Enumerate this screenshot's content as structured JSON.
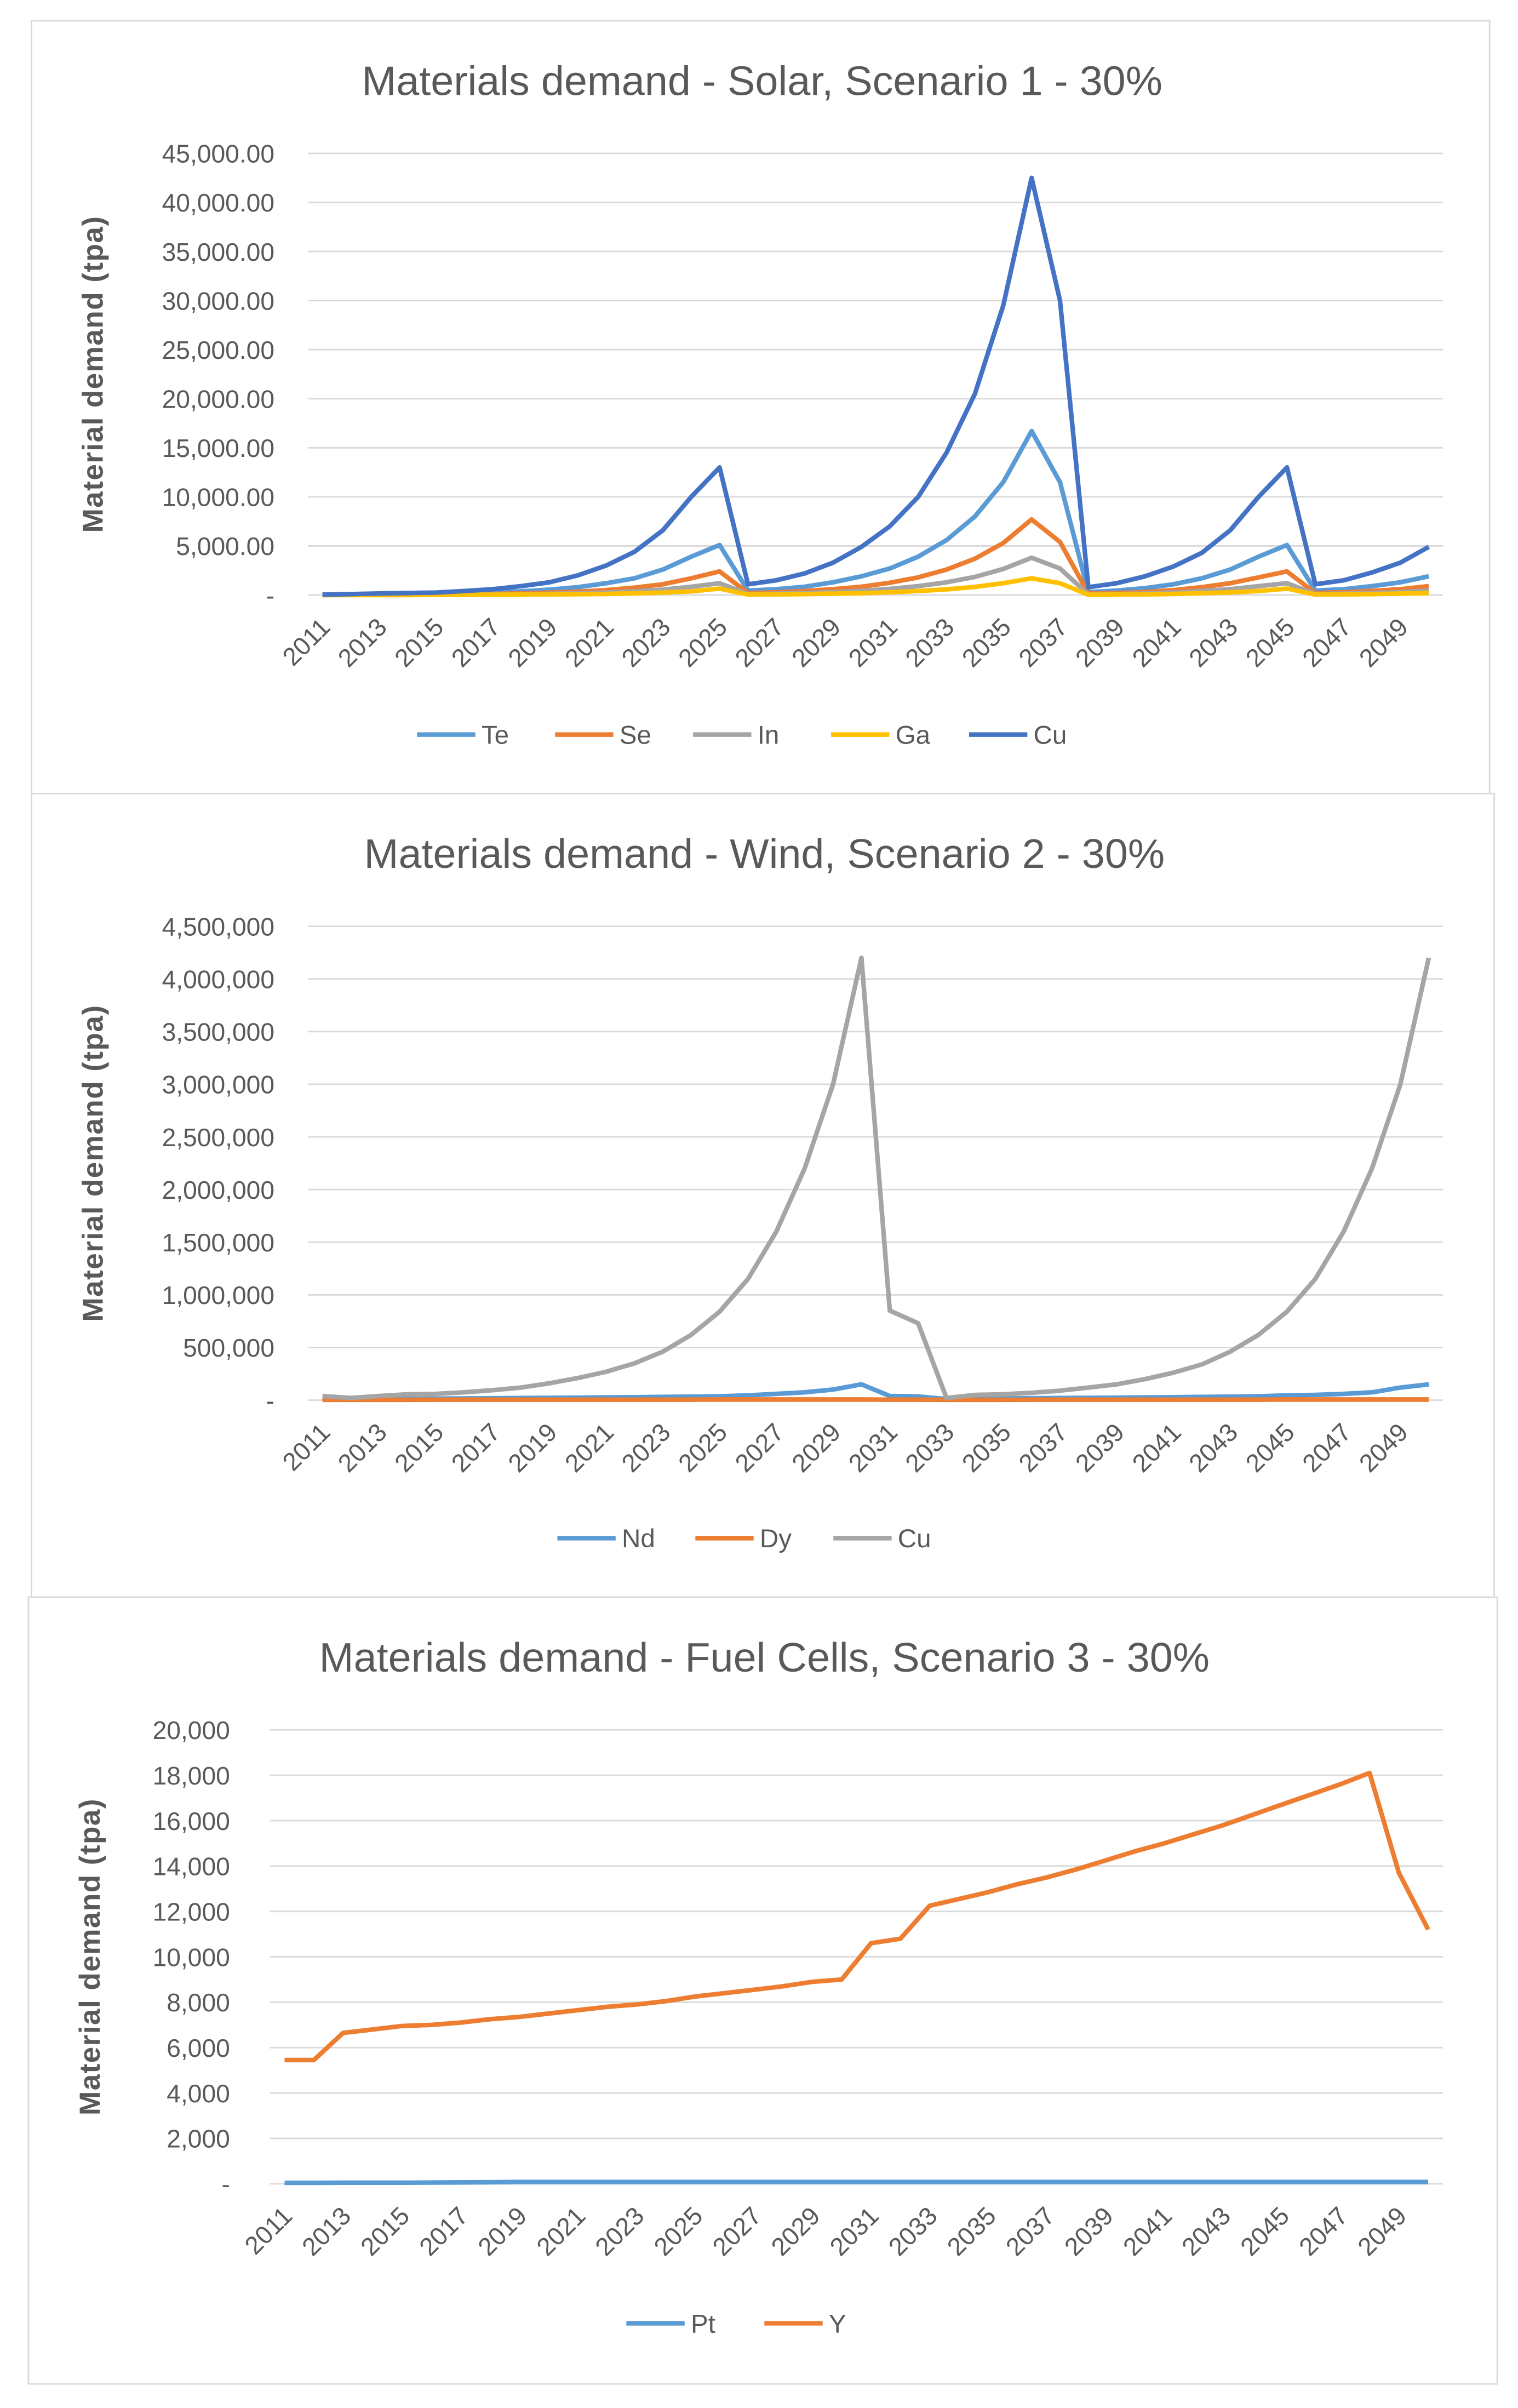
{
  "chart_data": [
    {
      "type": "line",
      "title": "Materials demand - Solar, Scenario 1 - 30%",
      "xlabel": "",
      "ylabel": "Material demand (tpa)",
      "ylim": [
        0,
        45000
      ],
      "yticks": [
        "-",
        "5,000.00",
        "10,000.00",
        "15,000.00",
        "20,000.00",
        "25,000.00",
        "30,000.00",
        "35,000.00",
        "40,000.00",
        "45,000.00"
      ],
      "grid": true,
      "legend": "bottom",
      "x": [
        2011,
        2012,
        2013,
        2014,
        2015,
        2016,
        2017,
        2018,
        2019,
        2020,
        2021,
        2022,
        2023,
        2024,
        2025,
        2026,
        2027,
        2028,
        2029,
        2030,
        2031,
        2032,
        2033,
        2034,
        2035,
        2036,
        2037,
        2038,
        2039,
        2040,
        2041,
        2042,
        2043,
        2044,
        2045,
        2046,
        2047,
        2048,
        2049,
        2050
      ],
      "xticklabels": [
        "2011",
        "2013",
        "2015",
        "2017",
        "2019",
        "2021",
        "2023",
        "2025",
        "2027",
        "2029",
        "2031",
        "2033",
        "2035",
        "2037",
        "2039",
        "2041",
        "2043",
        "2045",
        "2047",
        "2049"
      ],
      "series": [
        {
          "name": "Te",
          "color": "#5b9bd5",
          "values": [
            20,
            40,
            60,
            80,
            100,
            160,
            250,
            380,
            550,
            800,
            1200,
            1700,
            2600,
            3900,
            5100,
            450,
            600,
            850,
            1300,
            1900,
            2700,
            3900,
            5600,
            8000,
            11500,
            16700,
            11500,
            300,
            450,
            700,
            1100,
            1700,
            2600,
            3900,
            5100,
            450,
            600,
            900,
            1300,
            1900
          ]
        },
        {
          "name": "Se",
          "color": "#ed7d31",
          "values": [
            10,
            20,
            25,
            35,
            45,
            70,
            110,
            170,
            250,
            350,
            500,
            750,
            1100,
            1700,
            2400,
            200,
            280,
            400,
            600,
            850,
            1250,
            1800,
            2600,
            3700,
            5300,
            7700,
            5400,
            150,
            200,
            320,
            500,
            800,
            1200,
            1800,
            2400,
            200,
            280,
            420,
            600,
            900
          ]
        },
        {
          "name": "In",
          "color": "#a5a5a5",
          "values": [
            5,
            10,
            12,
            17,
            22,
            35,
            55,
            85,
            120,
            170,
            250,
            370,
            550,
            850,
            1200,
            100,
            140,
            200,
            300,
            420,
            620,
            900,
            1300,
            1850,
            2650,
            3800,
            2700,
            70,
            100,
            160,
            250,
            400,
            600,
            900,
            1200,
            100,
            140,
            210,
            300,
            450
          ]
        },
        {
          "name": "Ga",
          "color": "#ffc000",
          "values": [
            2,
            4,
            5,
            7,
            10,
            15,
            25,
            40,
            55,
            80,
            110,
            170,
            250,
            380,
            650,
            45,
            65,
            90,
            135,
            190,
            280,
            400,
            580,
            830,
            1200,
            1700,
            1200,
            30,
            45,
            70,
            110,
            180,
            270,
            400,
            650,
            45,
            65,
            95,
            135,
            200
          ]
        },
        {
          "name": "Cu",
          "color": "#4472c4",
          "values": [
            50,
            100,
            150,
            200,
            250,
            400,
            600,
            900,
            1300,
            2000,
            3000,
            4400,
            6600,
            10000,
            13000,
            1100,
            1500,
            2200,
            3300,
            4900,
            7000,
            10000,
            14500,
            20500,
            29500,
            42500,
            30000,
            800,
            1200,
            1900,
            2900,
            4300,
            6600,
            10000,
            13000,
            1100,
            1500,
            2300,
            3300,
            4900
          ]
        }
      ]
    },
    {
      "type": "line",
      "title": "Materials demand - Wind, Scenario 2 - 30%",
      "xlabel": "",
      "ylabel": "Material demand (tpa)",
      "ylim": [
        0,
        4500000
      ],
      "yticks": [
        "-",
        "500,000",
        "1,000,000",
        "1,500,000",
        "2,000,000",
        "2,500,000",
        "3,000,000",
        "3,500,000",
        "4,000,000",
        "4,500,000"
      ],
      "grid": true,
      "legend": "bottom",
      "x": [
        2011,
        2012,
        2013,
        2014,
        2015,
        2016,
        2017,
        2018,
        2019,
        2020,
        2021,
        2022,
        2023,
        2024,
        2025,
        2026,
        2027,
        2028,
        2029,
        2030,
        2031,
        2032,
        2033,
        2034,
        2035,
        2036,
        2037,
        2038,
        2039,
        2040,
        2041,
        2042,
        2043,
        2044,
        2045,
        2046,
        2047,
        2048,
        2049,
        2050
      ],
      "xticklabels": [
        "2011",
        "2013",
        "2015",
        "2017",
        "2019",
        "2021",
        "2023",
        "2025",
        "2027",
        "2029",
        "2031",
        "2033",
        "2035",
        "2037",
        "2039",
        "2041",
        "2043",
        "2045",
        "2047",
        "2049"
      ],
      "series": [
        {
          "name": "Nd",
          "color": "#5b9bd5",
          "values": [
            5000,
            8000,
            10000,
            12000,
            14000,
            16000,
            18000,
            20000,
            22000,
            24000,
            26000,
            28000,
            30000,
            33000,
            37000,
            45000,
            60000,
            75000,
            100000,
            150000,
            40000,
            35000,
            10000,
            14000,
            16000,
            18000,
            20000,
            22000,
            24000,
            26000,
            28000,
            30000,
            33000,
            37000,
            45000,
            50000,
            60000,
            75000,
            120000,
            150000
          ]
        },
        {
          "name": "Dy",
          "color": "#ed7d31",
          "values": [
            3000,
            3000,
            3500,
            3500,
            4000,
            4000,
            4000,
            4500,
            4500,
            4500,
            5000,
            5000,
            5000,
            5000,
            5500,
            5500,
            5500,
            6000,
            6000,
            6500,
            4000,
            4000,
            3000,
            3500,
            3500,
            4000,
            4000,
            4000,
            4500,
            4500,
            4500,
            5000,
            5000,
            5000,
            5500,
            5500,
            5500,
            6000,
            6000,
            6500
          ]
        },
        {
          "name": "Cu",
          "color": "#a5a5a5",
          "values": [
            40000,
            20000,
            40000,
            55000,
            60000,
            75000,
            95000,
            120000,
            160000,
            210000,
            270000,
            350000,
            460000,
            620000,
            840000,
            1150000,
            1600000,
            2200000,
            3000000,
            4200000,
            850000,
            730000,
            20000,
            50000,
            55000,
            70000,
            90000,
            120000,
            150000,
            200000,
            260000,
            340000,
            460000,
            620000,
            840000,
            1150000,
            1600000,
            2200000,
            3000000,
            4200000
          ]
        }
      ]
    },
    {
      "type": "line",
      "title": "Materials demand - Fuel Cells, Scenario 3 - 30%",
      "xlabel": "",
      "ylabel": "Material demand (tpa)",
      "ylim": [
        0,
        20000
      ],
      "yticks": [
        "-",
        "2,000",
        "4,000",
        "6,000",
        "8,000",
        "10,000",
        "12,000",
        "14,000",
        "16,000",
        "18,000",
        "20,000"
      ],
      "grid": true,
      "legend": "bottom",
      "x": [
        2011,
        2012,
        2013,
        2014,
        2015,
        2016,
        2017,
        2018,
        2019,
        2020,
        2021,
        2022,
        2023,
        2024,
        2025,
        2026,
        2027,
        2028,
        2029,
        2030,
        2031,
        2032,
        2033,
        2034,
        2035,
        2036,
        2037,
        2038,
        2039,
        2040,
        2041,
        2042,
        2043,
        2044,
        2045,
        2046,
        2047,
        2048,
        2049,
        2050
      ],
      "xticklabels": [
        "2011",
        "2013",
        "2015",
        "2017",
        "2019",
        "2021",
        "2023",
        "2025",
        "2027",
        "2029",
        "2031",
        "2033",
        "2035",
        "2037",
        "2039",
        "2041",
        "2043",
        "2045",
        "2047",
        "2049"
      ],
      "series": [
        {
          "name": "Pt",
          "color": "#5b9bd5",
          "values": [
            40,
            40,
            45,
            45,
            50,
            55,
            60,
            70,
            80,
            80,
            80,
            80,
            80,
            80,
            80,
            80,
            80,
            80,
            80,
            80,
            80,
            80,
            80,
            80,
            80,
            80,
            80,
            80,
            80,
            80,
            80,
            80,
            80,
            80,
            80,
            80,
            80,
            80,
            80,
            80
          ]
        },
        {
          "name": "Y",
          "color": "#ed7d31",
          "values": [
            5450,
            5450,
            6650,
            6800,
            6950,
            7000,
            7100,
            7250,
            7350,
            7500,
            7650,
            7800,
            7900,
            8050,
            8250,
            8400,
            8550,
            8700,
            8900,
            9000,
            10600,
            10800,
            12250,
            12550,
            12850,
            13200,
            13500,
            13850,
            14250,
            14650,
            15000,
            15400,
            15800,
            16250,
            16700,
            17150,
            17600,
            18100,
            13700,
            11200
          ]
        }
      ]
    }
  ]
}
